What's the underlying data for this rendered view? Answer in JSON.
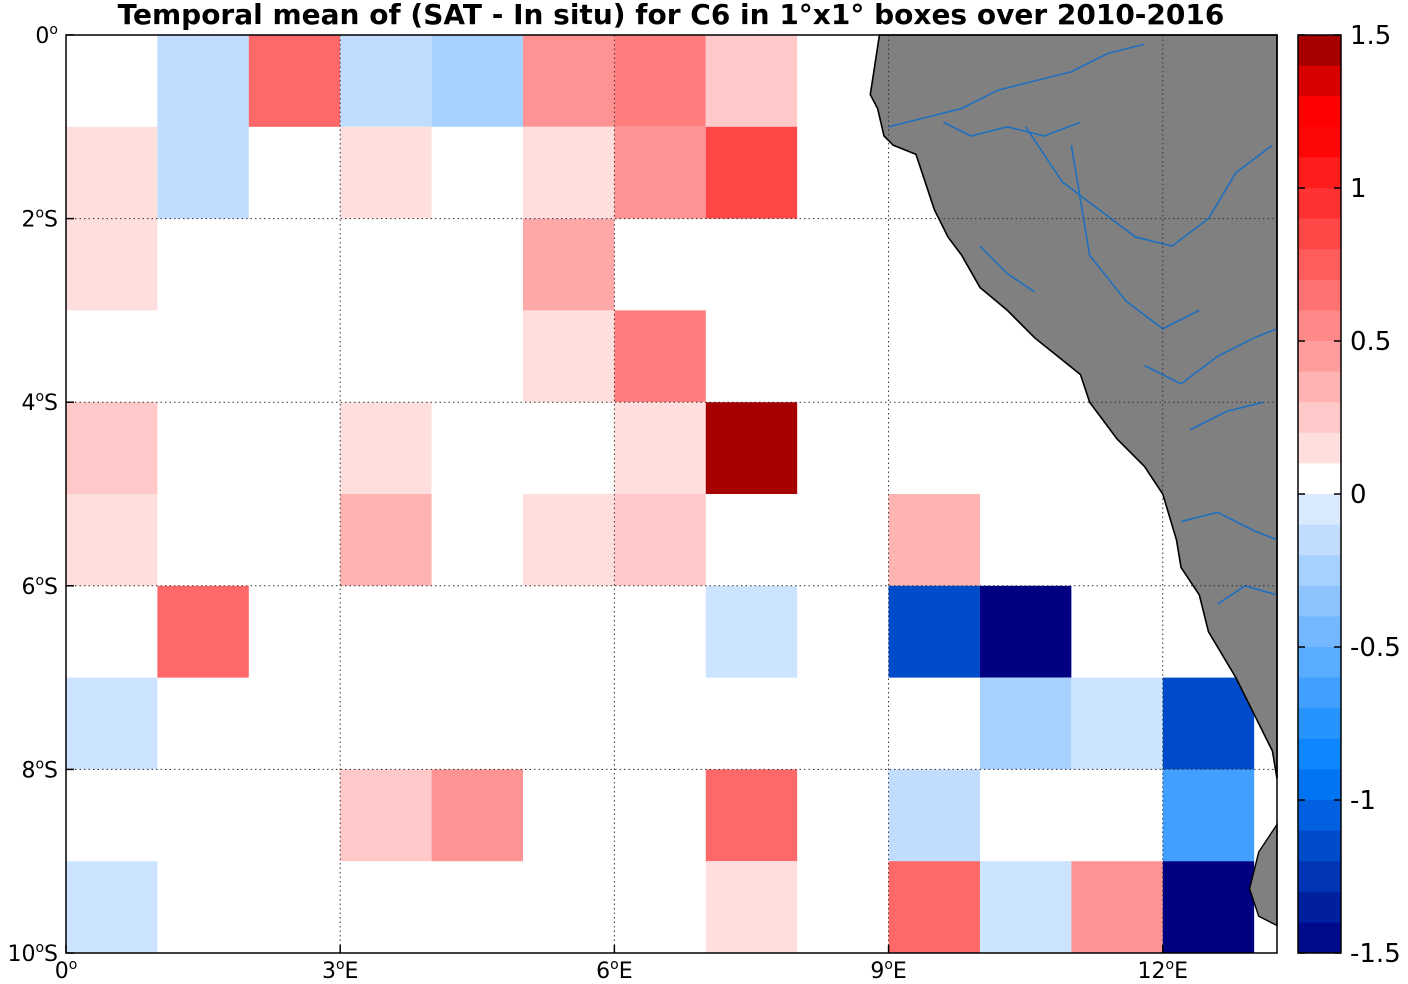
{
  "chart_data": {
    "type": "heatmap",
    "title": "Temporal mean of (SAT - In situ) for C6 in 1°x1° boxes over 2010-2016",
    "xlabel": "",
    "ylabel": "",
    "xlim": [
      0,
      13.25
    ],
    "ylim": [
      -10,
      0
    ],
    "x_ticks": [
      {
        "value": 0,
        "label": "0",
        "sup": "o",
        "suffix": ""
      },
      {
        "value": 3,
        "label": "3",
        "sup": "o",
        "suffix": "E"
      },
      {
        "value": 6,
        "label": "6",
        "sup": "o",
        "suffix": "E"
      },
      {
        "value": 9,
        "label": "9",
        "sup": "o",
        "suffix": "E"
      },
      {
        "value": 12,
        "label": "12",
        "sup": "o",
        "suffix": "E"
      }
    ],
    "y_ticks": [
      {
        "value": 0,
        "label": "0",
        "sup": "o",
        "suffix": ""
      },
      {
        "value": -2,
        "label": "2",
        "sup": "o",
        "suffix": "S"
      },
      {
        "value": -4,
        "label": "4",
        "sup": "o",
        "suffix": "S"
      },
      {
        "value": -6,
        "label": "6",
        "sup": "o",
        "suffix": "S"
      },
      {
        "value": -8,
        "label": "8",
        "sup": "o",
        "suffix": "S"
      },
      {
        "value": -10,
        "label": "10",
        "sup": "o",
        "suffix": "S"
      }
    ],
    "grid": true,
    "colorbar": {
      "position": "right",
      "min": -1.5,
      "max": 1.5,
      "step": 0.1,
      "ticks": [
        {
          "value": 1.5,
          "label": "1.5"
        },
        {
          "value": 1,
          "label": "1"
        },
        {
          "value": 0.5,
          "label": "0.5"
        },
        {
          "value": 0,
          "label": "0"
        },
        {
          "value": -0.5,
          "label": "-0.5"
        },
        {
          "value": -1,
          "label": "-1"
        },
        {
          "value": -1.5,
          "label": "-1.5"
        }
      ]
    },
    "cell_size_deg": 1,
    "cells": [
      {
        "lon": 1,
        "lat": 0,
        "value": -0.15
      },
      {
        "lon": 2,
        "lat": 0,
        "value": 0.7
      },
      {
        "lon": 3,
        "lat": 0,
        "value": -0.15
      },
      {
        "lon": 4,
        "lat": 0,
        "value": -0.25
      },
      {
        "lon": 5,
        "lat": 0,
        "value": 0.5
      },
      {
        "lon": 6,
        "lat": 0,
        "value": 0.6
      },
      {
        "lon": 7,
        "lat": 0,
        "value": 0.25
      },
      {
        "lon": 0,
        "lat": -1,
        "value": 0.15
      },
      {
        "lon": 1,
        "lat": -1,
        "value": -0.15
      },
      {
        "lon": 3,
        "lat": -1,
        "value": 0.15
      },
      {
        "lon": 5,
        "lat": -1,
        "value": 0.15
      },
      {
        "lon": 6,
        "lat": -1,
        "value": 0.5
      },
      {
        "lon": 7,
        "lat": -1,
        "value": 0.85
      },
      {
        "lon": 0,
        "lat": -2,
        "value": 0.15
      },
      {
        "lon": 5,
        "lat": -2,
        "value": 0.4
      },
      {
        "lon": 6,
        "lat": -3,
        "value": 0.6
      },
      {
        "lon": 5,
        "lat": -3,
        "value": 0.15
      },
      {
        "lon": 0,
        "lat": -4,
        "value": 0.25
      },
      {
        "lon": 3,
        "lat": -4,
        "value": 0.15
      },
      {
        "lon": 6,
        "lat": -4,
        "value": 0.15
      },
      {
        "lon": 7,
        "lat": -4,
        "value": 1.45
      },
      {
        "lon": 0,
        "lat": -5,
        "value": 0.15
      },
      {
        "lon": 3,
        "lat": -5,
        "value": 0.35
      },
      {
        "lon": 5,
        "lat": -5,
        "value": 0.15
      },
      {
        "lon": 6,
        "lat": -5,
        "value": 0.25
      },
      {
        "lon": 9,
        "lat": -5,
        "value": 0.35
      },
      {
        "lon": 1,
        "lat": -6,
        "value": 0.7
      },
      {
        "lon": 7,
        "lat": -6,
        "value": -0.1
      },
      {
        "lon": 9,
        "lat": -6,
        "value": -1.15
      },
      {
        "lon": 10,
        "lat": -6,
        "value": -1.5
      },
      {
        "lon": 0,
        "lat": -7,
        "value": -0.1
      },
      {
        "lon": 10,
        "lat": -7,
        "value": -0.25
      },
      {
        "lon": 11,
        "lat": -7,
        "value": -0.1
      },
      {
        "lon": 12,
        "lat": -7,
        "value": -1.15
      },
      {
        "lon": 3,
        "lat": -8,
        "value": 0.25
      },
      {
        "lon": 4,
        "lat": -8,
        "value": 0.5
      },
      {
        "lon": 7,
        "lat": -8,
        "value": 0.7
      },
      {
        "lon": 9,
        "lat": -8,
        "value": -0.15
      },
      {
        "lon": 12,
        "lat": -8,
        "value": -0.65
      },
      {
        "lon": 0,
        "lat": -9,
        "value": -0.1
      },
      {
        "lon": 7,
        "lat": -9,
        "value": 0.15
      },
      {
        "lon": 9,
        "lat": -9,
        "value": 0.7
      },
      {
        "lon": 10,
        "lat": -9,
        "value": -0.1
      },
      {
        "lon": 11,
        "lat": -9,
        "value": 0.5
      },
      {
        "lon": 12,
        "lat": -9,
        "value": -1.5
      }
    ],
    "land": {
      "color": "#808080",
      "coastline": [
        [
          8.8,
          -0.65
        ],
        [
          8.88,
          -0.8
        ],
        [
          8.95,
          -1.1
        ],
        [
          9.05,
          -1.2
        ],
        [
          9.3,
          -1.3
        ],
        [
          9.5,
          -1.9
        ],
        [
          9.65,
          -2.2
        ],
        [
          9.8,
          -2.4
        ],
        [
          10.0,
          -2.75
        ],
        [
          10.3,
          -3.0
        ],
        [
          10.6,
          -3.3
        ],
        [
          10.85,
          -3.5
        ],
        [
          11.1,
          -3.7
        ],
        [
          11.2,
          -4.0
        ],
        [
          11.5,
          -4.4
        ],
        [
          11.8,
          -4.7
        ],
        [
          12.0,
          -5.0
        ],
        [
          12.15,
          -5.5
        ],
        [
          12.2,
          -5.8
        ],
        [
          12.4,
          -6.1
        ],
        [
          12.5,
          -6.5
        ],
        [
          12.8,
          -7.0
        ],
        [
          13.0,
          -7.4
        ],
        [
          13.2,
          -7.8
        ],
        [
          13.25,
          -8.1
        ]
      ],
      "rivers_color": "#1f6fbf"
    }
  }
}
